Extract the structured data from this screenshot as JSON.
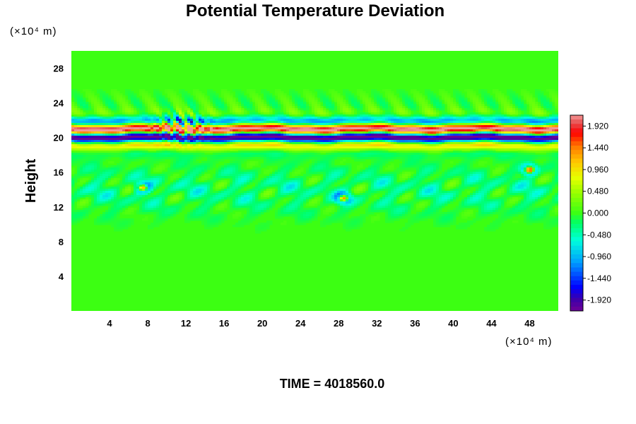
{
  "chart_data": {
    "type": "heatmap",
    "title": "Potential Temperature Deviation",
    "ylabel": "Height",
    "x_unit": "(×10⁴ m)",
    "y_unit": "(×10⁴ m)",
    "footer": "TIME = 4018560.0",
    "xlim": [
      0,
      51
    ],
    "ylim": [
      0,
      30
    ],
    "x_ticks": [
      4,
      8,
      12,
      16,
      20,
      24,
      28,
      32,
      36,
      40,
      44,
      48
    ],
    "y_ticks": [
      4,
      8,
      12,
      16,
      20,
      24,
      28
    ],
    "colorbar": {
      "min": -2.16,
      "max": 2.16,
      "tick_values": [
        1.92,
        1.44,
        0.96,
        0.48,
        0.0,
        -0.48,
        -0.96,
        -1.44,
        -1.92
      ],
      "tick_labels": [
        "1.920",
        "1.440",
        "0.960",
        "0.480",
        "0.000",
        "-0.480",
        "-0.960",
        "-1.440",
        "-1.920"
      ]
    },
    "features": [
      {
        "kind": "stratospheric_wave_band",
        "y_center": 20.5,
        "y_halfwidth": 1.8,
        "amplitude": "±1.92 and beyond"
      },
      {
        "kind": "tropospheric_perturbations",
        "y_range": [
          10,
          18
        ],
        "amplitude": "±0.5"
      },
      {
        "kind": "hotspot",
        "x": 48,
        "y": 16.3,
        "amplitude": 1.9
      },
      {
        "kind": "hotspot",
        "x": 28.5,
        "y": 13,
        "amplitude": 1.7
      },
      {
        "kind": "hotspot",
        "x": 7.5,
        "y": 14.2,
        "amplitude": 1.6
      }
    ],
    "grid": false,
    "legend": "colorbar right"
  }
}
